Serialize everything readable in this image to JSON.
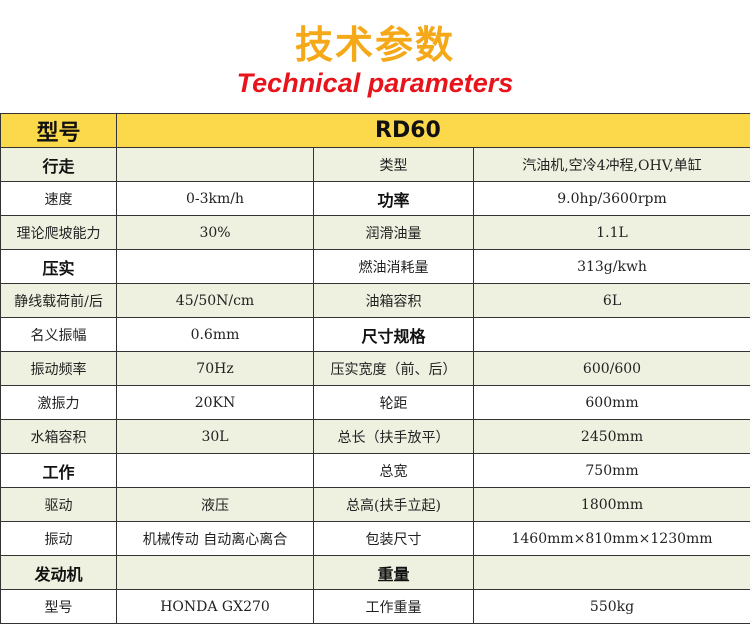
{
  "title_cn": "技术参数",
  "title_en": "Technical parameters",
  "header": {
    "label": "型号",
    "model": "RD60"
  },
  "rows": [
    {
      "c1": "行走",
      "c1_bold": true,
      "c2": "",
      "c3": "类型",
      "c3_bold": false,
      "c4": "汽油机,空冷4冲程,OHV,单缸"
    },
    {
      "c1": "速度",
      "c1_bold": false,
      "c2": "0-3km/h",
      "c3": "功率",
      "c3_bold": true,
      "c4": "9.0hp/3600rpm"
    },
    {
      "c1": "理论爬坡能力",
      "c1_bold": false,
      "c2": "30%",
      "c3": "润滑油量",
      "c3_bold": false,
      "c4": "1.1L"
    },
    {
      "c1": "压实",
      "c1_bold": true,
      "c2": "",
      "c3": "燃油消耗量",
      "c3_bold": false,
      "c4": "313g/kwh"
    },
    {
      "c1": "静线载荷前/后",
      "c1_bold": false,
      "c2": "45/50N/cm",
      "c3": "油箱容积",
      "c3_bold": false,
      "c4": "6L"
    },
    {
      "c1": "名义振幅",
      "c1_bold": false,
      "c2": "0.6mm",
      "c3": "尺寸规格",
      "c3_bold": true,
      "c4": ""
    },
    {
      "c1": "振动频率",
      "c1_bold": false,
      "c2": "70Hz",
      "c3": "压实宽度（前、后）",
      "c3_bold": false,
      "c4": "600/600"
    },
    {
      "c1": "激振力",
      "c1_bold": false,
      "c2": "20KN",
      "c3": "轮距",
      "c3_bold": false,
      "c4": "600mm"
    },
    {
      "c1": "水箱容积",
      "c1_bold": false,
      "c2": "30L",
      "c3": "总长（扶手放平）",
      "c3_bold": false,
      "c4": "2450mm"
    },
    {
      "c1": "工作",
      "c1_bold": true,
      "c2": "",
      "c3": "总宽",
      "c3_bold": false,
      "c4": "750mm"
    },
    {
      "c1": "驱动",
      "c1_bold": false,
      "c2": "液压",
      "c3": "总高(扶手立起)",
      "c3_bold": false,
      "c4": "1800mm"
    },
    {
      "c1": "振动",
      "c1_bold": false,
      "c2": "机械传动 自动离心离合",
      "c3": "包装尺寸",
      "c3_bold": false,
      "c4": "1460mm×810mm×1230mm"
    },
    {
      "c1": "发动机",
      "c1_bold": true,
      "c2": "",
      "c3": "重量",
      "c3_bold": true,
      "c4": ""
    },
    {
      "c1": "型号",
      "c1_bold": false,
      "c2": "HONDA GX270",
      "c3": "工作重量",
      "c3_bold": false,
      "c4": "550kg"
    }
  ],
  "colors": {
    "title": "#f5a818",
    "subtitle": "#e8141c",
    "header_bg": "#fcd94a",
    "row_alt": "#eef1e0"
  }
}
